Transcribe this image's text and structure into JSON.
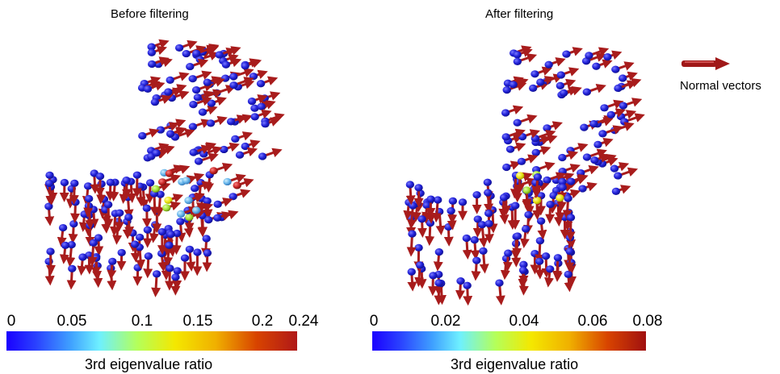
{
  "panels": [
    {
      "title": "Before filtering",
      "colorbar_label": "3rd eigenvalue ratio",
      "ticks": [
        "0",
        "0.05",
        "0.1",
        "0.15",
        "0.2",
        "0.24"
      ]
    },
    {
      "title": "After filtering",
      "colorbar_label": "3rd eigenvalue ratio",
      "ticks": [
        "0",
        "0.02",
        "0.04",
        "0.06",
        "0.08"
      ]
    }
  ],
  "legend": {
    "label": "Normal vectors",
    "arrow_color": "#a01818"
  },
  "colors": {
    "low": "#1a1ae0",
    "mid": "#8ee000",
    "high": "#b01818",
    "arrow": "#a81c1c"
  }
}
